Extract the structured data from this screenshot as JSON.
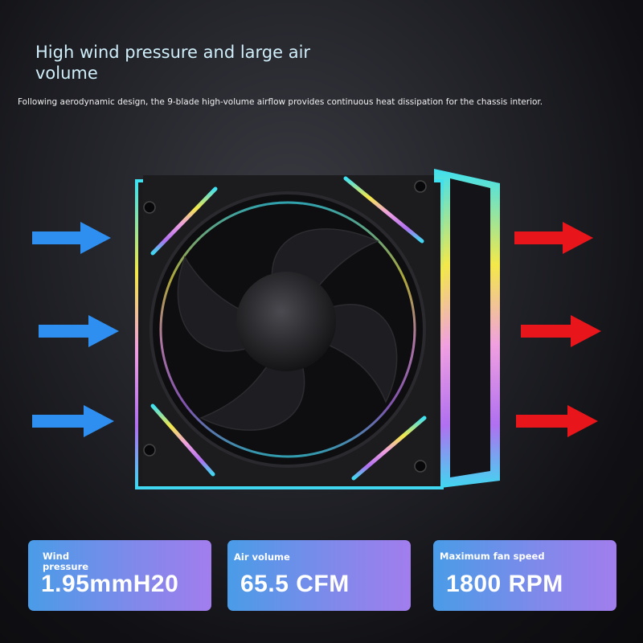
{
  "headline": {
    "title": "High wind pressure and large air volume",
    "description": "Following aerodynamic design, the 9-blade high-volume airflow provides continuous heat dissipation for the chassis interior."
  },
  "specs": [
    {
      "label": "Wind pressure",
      "value": "1.95mmH20"
    },
    {
      "label": "Air volume",
      "value": "65.5 CFM"
    },
    {
      "label": "Maximum fan speed",
      "value": "1800 RPM"
    }
  ],
  "colors": {
    "intake_arrow": "#2f8ff0",
    "exhaust_arrow": "#e8161b",
    "card_start": "#4a9ce8",
    "card_end": "#a27ded",
    "title": "#cfeefa"
  },
  "icons": {
    "intake": "arrow-right-icon",
    "exhaust": "arrow-right-icon",
    "product": "rgb-case-fan"
  }
}
